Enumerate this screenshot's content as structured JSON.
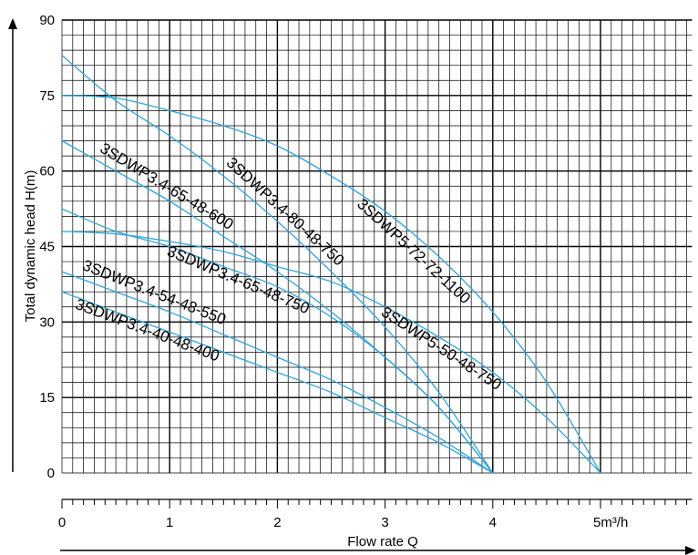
{
  "chart_data": {
    "type": "line",
    "xlabel": "Flow rate Q",
    "ylabel": "Total dynamic head H(m)",
    "x_unit": "m³/h",
    "xlim": [
      0,
      5.85
    ],
    "ylim": [
      0,
      90
    ],
    "x_ticks": [
      {
        "value": 0,
        "label": "0"
      },
      {
        "value": 1,
        "label": "1"
      },
      {
        "value": 2,
        "label": "2"
      },
      {
        "value": 3,
        "label": "3"
      },
      {
        "value": 4,
        "label": "4"
      },
      {
        "value": 5,
        "label": "5m³/h"
      }
    ],
    "y_ticks": [
      {
        "value": 0,
        "label": "0"
      },
      {
        "value": 15,
        "label": "15"
      },
      {
        "value": 30,
        "label": "30"
      },
      {
        "value": 45,
        "label": "45"
      },
      {
        "value": 60,
        "label": "60"
      },
      {
        "value": 75,
        "label": "75"
      },
      {
        "value": 90,
        "label": "90"
      }
    ],
    "grid": true,
    "colors": {
      "curve": "#2aa6e0",
      "grid": "#000000"
    },
    "series": [
      {
        "name": "3SDWP3.4-80-48-750",
        "x": [
          0,
          0.5,
          1.0,
          1.5,
          2.0,
          2.5,
          3.0,
          3.5,
          4.0
        ],
        "y": [
          83,
          74,
          67,
          59,
          50,
          40,
          29,
          16,
          0
        ]
      },
      {
        "name": "3SDWP5-72-72-1100",
        "x": [
          0,
          0.5,
          1.0,
          1.5,
          2.0,
          2.5,
          3.0,
          3.5,
          4.0,
          4.5,
          5.0
        ],
        "y": [
          75,
          74.5,
          72,
          69,
          65,
          59,
          52,
          43,
          32,
          18,
          0
        ]
      },
      {
        "name": "3SDWP3.4-65-48-600",
        "x": [
          0,
          0.5,
          1.0,
          1.5,
          2.0,
          2.5,
          3.0,
          3.5,
          4.0
        ],
        "y": [
          66,
          60,
          54,
          47,
          40,
          32,
          23,
          13,
          0
        ]
      },
      {
        "name": "3SDWP3.4-65-48-750",
        "x": [
          0,
          0.5,
          1.0,
          1.5,
          2.0,
          2.5,
          3.0,
          3.5,
          4.0
        ],
        "y": [
          52.5,
          48,
          45,
          41,
          37,
          31,
          23,
          13,
          0
        ]
      },
      {
        "name": "3SDWP5-50-48-750",
        "x": [
          0,
          0.5,
          1.0,
          1.5,
          2.0,
          2.5,
          3.0,
          3.5,
          4.0,
          4.5,
          5.0
        ],
        "y": [
          48,
          47.5,
          46,
          44,
          41,
          38,
          33,
          27,
          20,
          11,
          0
        ]
      },
      {
        "name": "3SDWP3.4-54-48-550",
        "x": [
          0,
          0.5,
          1.0,
          1.5,
          2.0,
          2.5,
          3.0,
          3.5,
          4.0
        ],
        "y": [
          40,
          36,
          32,
          27.5,
          23,
          18.5,
          13,
          7,
          0
        ]
      },
      {
        "name": "3SDWP3.4-40-48-400",
        "x": [
          0,
          0.5,
          1.0,
          1.5,
          2.0,
          2.5,
          3.0,
          3.5,
          4.0
        ],
        "y": [
          36,
          32,
          28,
          24,
          20,
          16,
          11,
          6,
          0
        ]
      }
    ],
    "curve_labels": [
      {
        "text": "3SDWP3.4-65-48-600",
        "series": 2,
        "at_x": 0.3,
        "dy": 0,
        "perp": -10,
        "w": 200
      },
      {
        "text": "3SDWP3.4-80-48-750",
        "series": 0,
        "at_x": 1.45,
        "dy": 0,
        "perp": -12,
        "w": 195
      },
      {
        "text": "3SDWP5-72-72-1100",
        "series": 1,
        "at_x": 2.8,
        "dy": 0,
        "perp": 12,
        "w": 190
      },
      {
        "text": "3SDWP3.4-65-48-750",
        "series": 3,
        "at_x": 1.0,
        "dy": 0,
        "perp": 10,
        "w": 198
      },
      {
        "text": "3SDWP5-50-48-750",
        "series": 4,
        "at_x": 3.0,
        "dy": 0,
        "perp": 10,
        "w": 180
      },
      {
        "text": "3SDWP3.4-54-48-550",
        "series": 5,
        "at_x": 0.15,
        "dy": 0,
        "perp": -10,
        "w": 200
      },
      {
        "text": "3SDWP3.4-40-48-400",
        "series": 6,
        "at_x": 0.15,
        "dy": 0,
        "perp": 12,
        "w": 200
      }
    ]
  }
}
